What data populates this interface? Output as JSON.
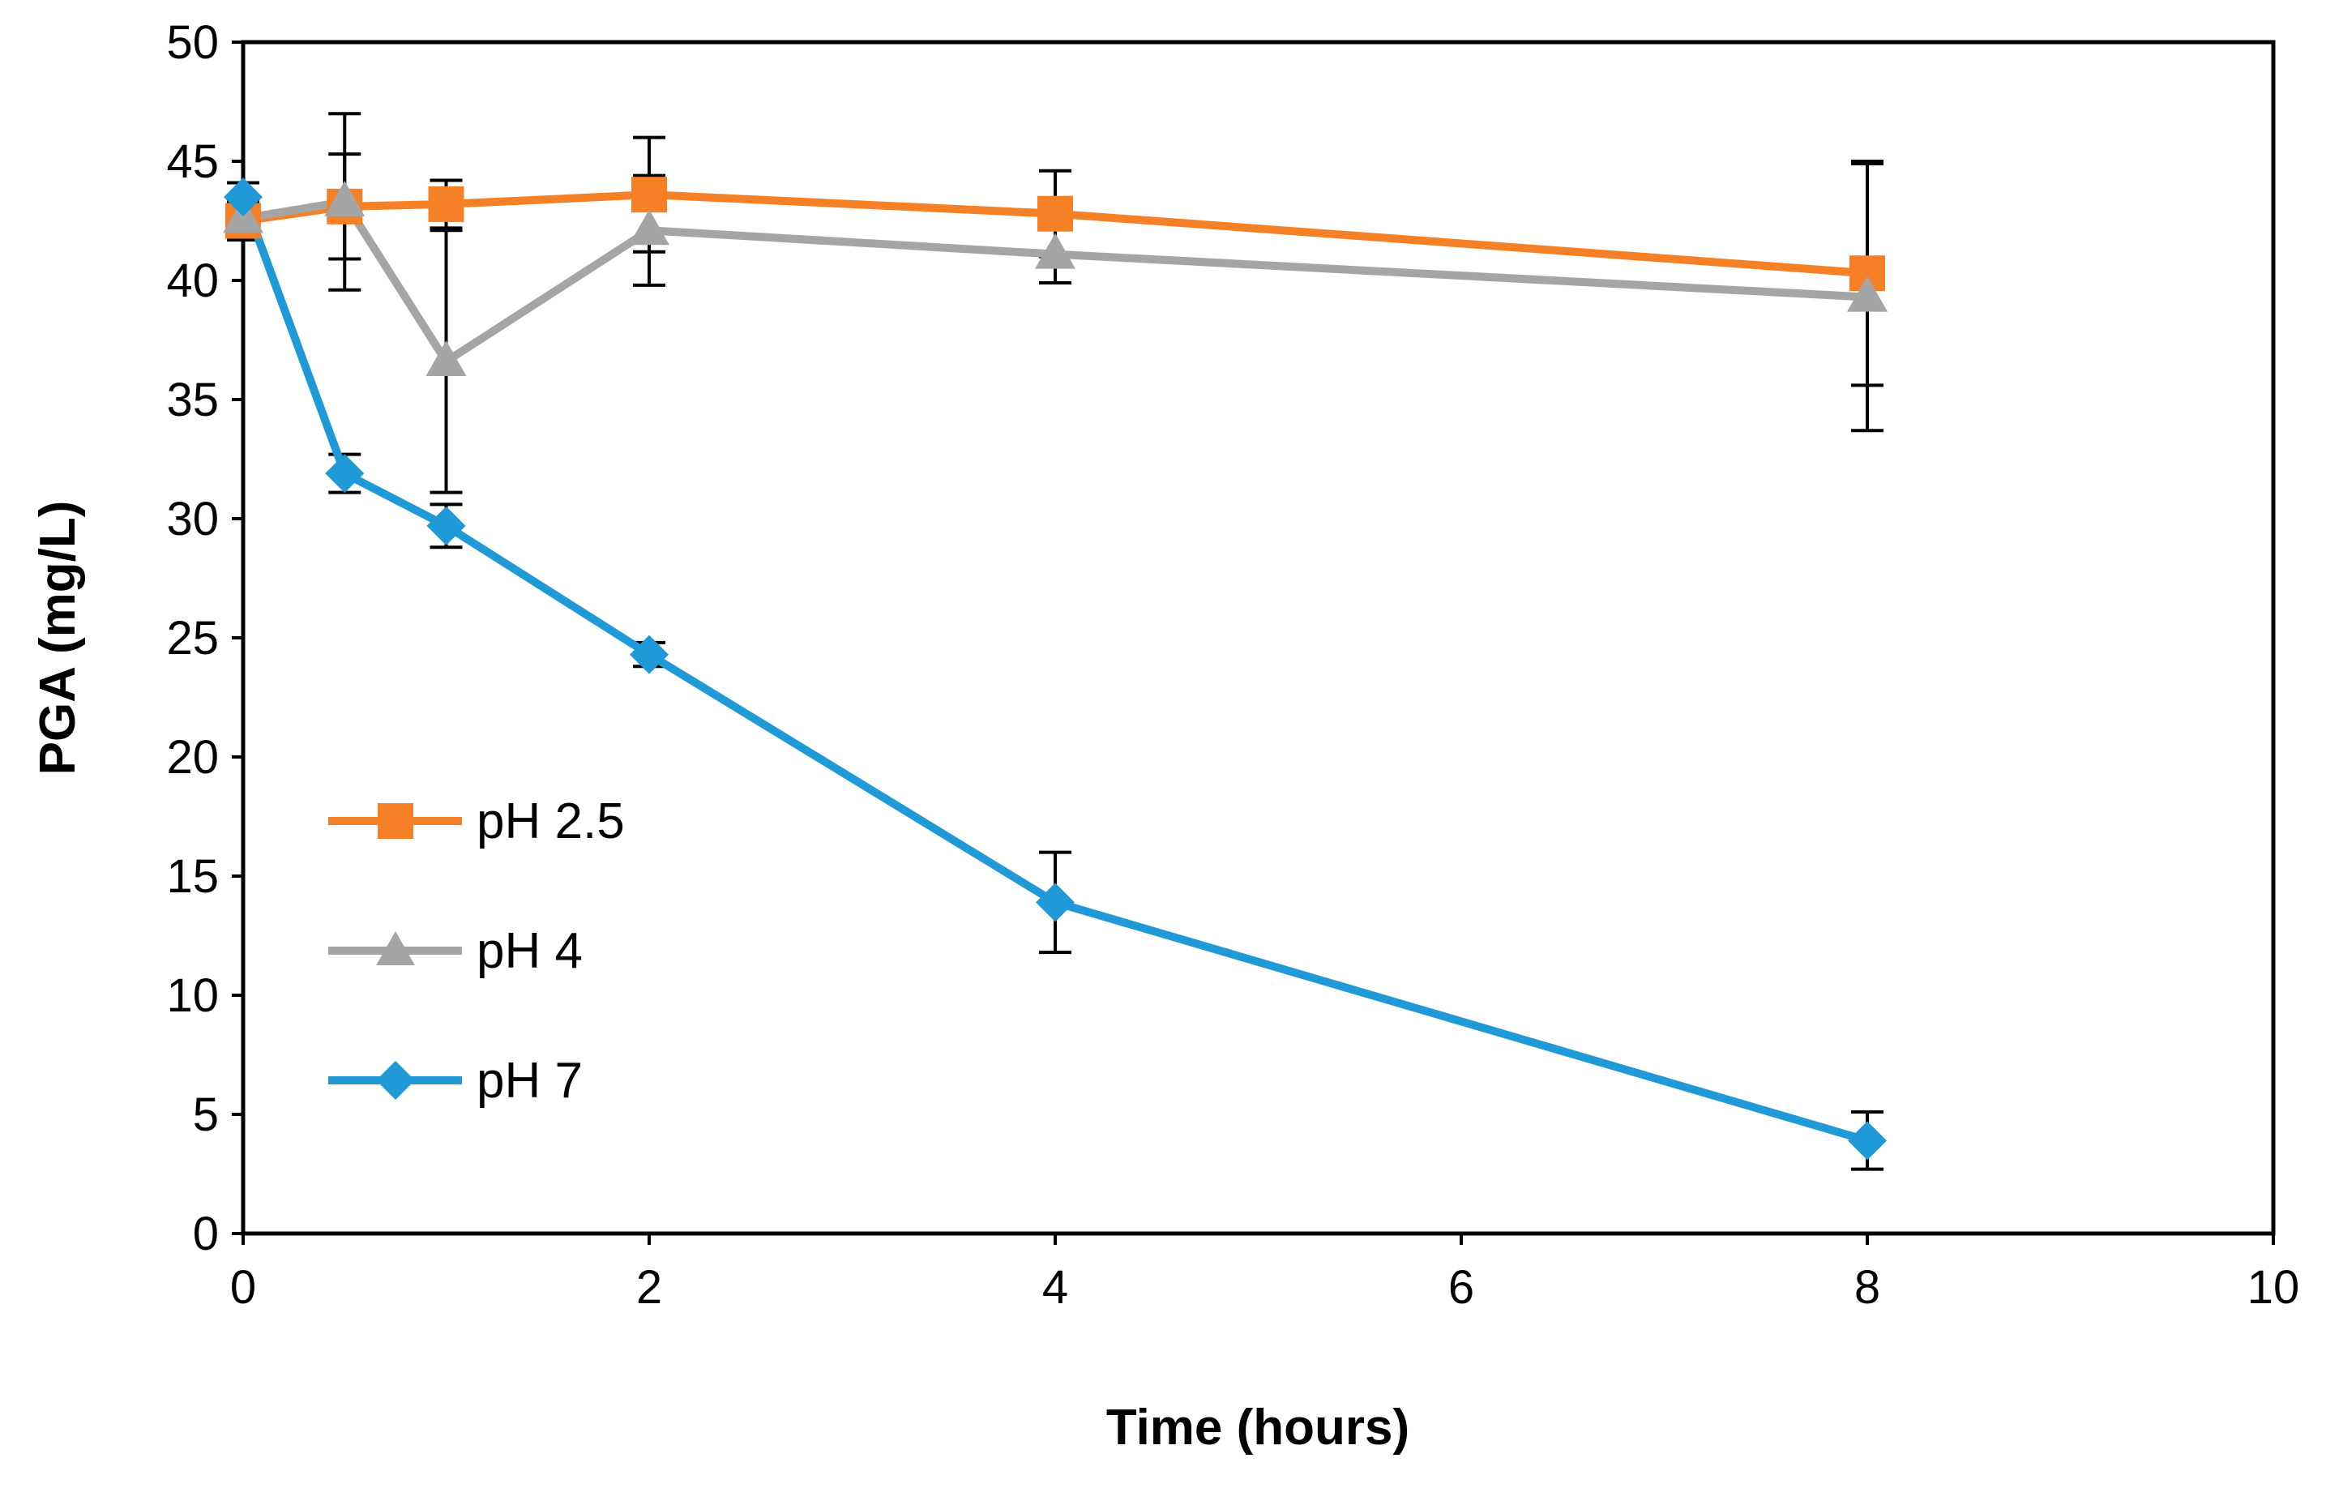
{
  "chart_data": {
    "type": "line",
    "title": "",
    "xlabel": "Time (hours)",
    "ylabel": "PGA (mg/L)",
    "xlim": [
      0,
      10
    ],
    "ylim": [
      0,
      50
    ],
    "xticks": [
      0,
      2,
      4,
      6,
      8,
      10
    ],
    "yticks": [
      0,
      5,
      10,
      15,
      20,
      25,
      30,
      35,
      40,
      45,
      50
    ],
    "grid": false,
    "legend_position": "center-left",
    "series": [
      {
        "name": "pH 2.5",
        "color": "#F58025",
        "marker": "square",
        "x": [
          0,
          0.5,
          1,
          2,
          4,
          8
        ],
        "y": [
          42.5,
          43.1,
          43.2,
          43.6,
          42.8,
          40.3
        ],
        "error": [
          0.8,
          2.2,
          1.0,
          2.4,
          1.8,
          4.7
        ]
      },
      {
        "name": "pH 4",
        "color": "#A5A5A5",
        "marker": "triangle",
        "x": [
          0,
          0.5,
          1,
          2,
          4,
          8
        ],
        "y": [
          42.6,
          43.3,
          36.6,
          42.1,
          41.1,
          39.3
        ],
        "error": [
          0.8,
          3.7,
          5.5,
          2.3,
          1.2,
          5.6
        ]
      },
      {
        "name": "pH 7",
        "color": "#1F9AD6",
        "marker": "diamond",
        "x": [
          0,
          0.5,
          1,
          2,
          4,
          8
        ],
        "y": [
          43.5,
          31.9,
          29.7,
          24.3,
          13.9,
          3.9
        ],
        "error": [
          0.6,
          0.8,
          0.9,
          0.5,
          2.1,
          1.2
        ]
      }
    ]
  }
}
